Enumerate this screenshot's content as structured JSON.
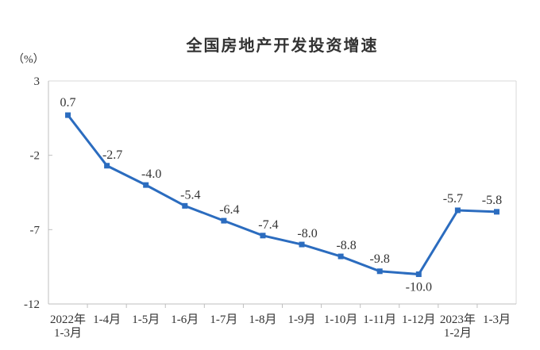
{
  "chart_data": {
    "type": "line",
    "title": "全国房地产开发投资增速",
    "unit_label": "（%）",
    "categories": [
      [
        "2022年",
        "1-3月"
      ],
      [
        "1-4月"
      ],
      [
        "1-5月"
      ],
      [
        "1-6月"
      ],
      [
        "1-7月"
      ],
      [
        "1-8月"
      ],
      [
        "1-9月"
      ],
      [
        "1-10月"
      ],
      [
        "1-11月"
      ],
      [
        "1-12月"
      ],
      [
        "2023年",
        "1-2月"
      ],
      [
        "1-3月"
      ]
    ],
    "values": [
      0.7,
      -2.7,
      -4.0,
      -5.4,
      -6.4,
      -7.4,
      -8.0,
      -8.8,
      -9.8,
      -10.0,
      -5.7,
      -5.8
    ],
    "data_labels": [
      "0.7",
      "-2.7",
      "-4.0",
      "-5.4",
      "-6.4",
      "-7.4",
      "-8.0",
      "-8.8",
      "-9.8",
      "-10.0",
      "-5.7",
      "-5.8"
    ],
    "label_positions": [
      "above",
      "above-right",
      "above-right",
      "above-right",
      "above-right",
      "above-right",
      "above-right",
      "above-right",
      "above",
      "below",
      "above-left",
      "above-left"
    ],
    "y_ticks": [
      3,
      -2,
      -7,
      -12
    ],
    "ylim": [
      -12,
      3
    ],
    "xlabel": "",
    "ylabel": "（%）",
    "grid": false,
    "legend": false,
    "line_color": "#2B6CBF",
    "marker": "square",
    "text_color": "#333333"
  }
}
